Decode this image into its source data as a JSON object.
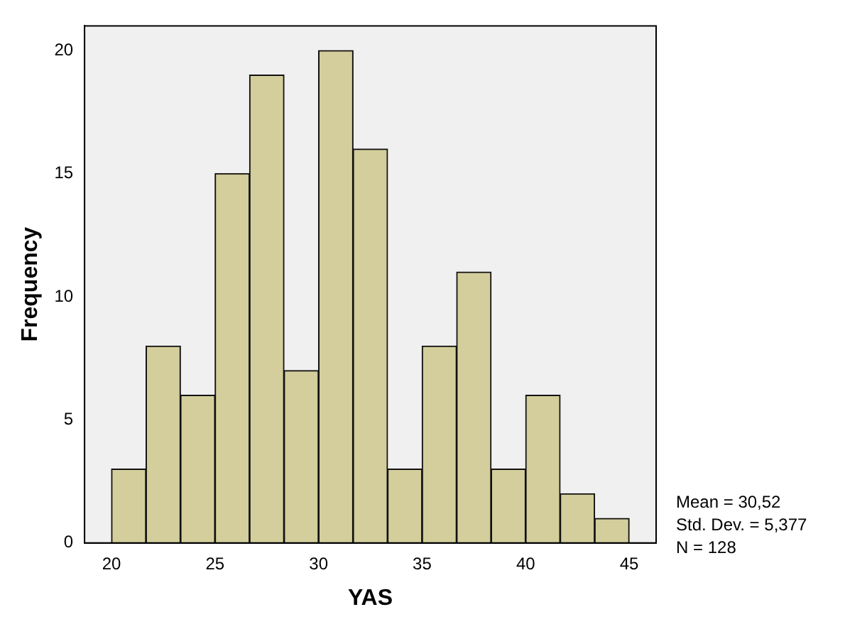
{
  "chart_data": {
    "type": "histogram",
    "xlabel": "YAS",
    "ylabel": "Frequency",
    "bins": [
      20,
      21.667,
      23.333,
      25,
      26.667,
      28.333,
      30,
      31.667,
      33.333,
      35,
      36.667,
      38.333,
      40,
      41.667,
      43.333,
      45
    ],
    "values": [
      3,
      8,
      6,
      15,
      19,
      7,
      20,
      16,
      3,
      8,
      11,
      3,
      6,
      2,
      1
    ],
    "color": "#d3ce9b",
    "xlim": [
      18.7,
      46.3
    ],
    "xticks": [
      20,
      25,
      30,
      35,
      40,
      45
    ],
    "ylim": [
      0,
      21
    ],
    "yticks": [
      0,
      5,
      10,
      15,
      20
    ],
    "annotations": [
      "Mean = 30,52",
      "Std. Dev. = 5,377",
      "N = 128"
    ]
  }
}
